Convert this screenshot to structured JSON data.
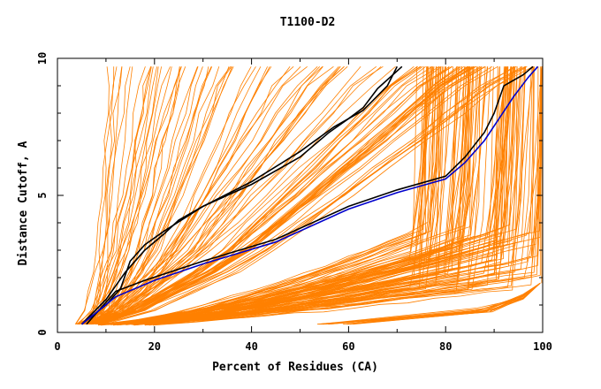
{
  "chart_data": {
    "type": "line",
    "title": "T1100-D2",
    "xlabel": "Percent of Residues (CA)",
    "ylabel": "Distance Cutoff, A",
    "xlim": [
      0,
      100
    ],
    "ylim": [
      0,
      10
    ],
    "x_ticks": [
      0,
      20,
      40,
      60,
      80,
      100
    ],
    "y_ticks": [
      0,
      5,
      10
    ],
    "grid": false,
    "legend": "none",
    "colors": {
      "bundle": "#ff8000",
      "highlight_black": "#000000",
      "highlight_blue": "#0000cc"
    },
    "series": [
      {
        "color": "#000000",
        "x": [
          5,
          10,
          13,
          15,
          18,
          22,
          30,
          40,
          50,
          57,
          60,
          63,
          66,
          71
        ],
        "y": [
          0.3,
          1.0,
          1.6,
          2.6,
          3.2,
          3.7,
          4.6,
          5.5,
          6.6,
          7.5,
          7.8,
          8.2,
          8.9,
          9.7
        ]
      },
      {
        "color": "#000000",
        "x": [
          5,
          10,
          14,
          18,
          22,
          25,
          30,
          40,
          50,
          56,
          60,
          63,
          68,
          70
        ],
        "y": [
          0.3,
          1.2,
          2.2,
          3.0,
          3.6,
          4.1,
          4.6,
          5.4,
          6.4,
          7.3,
          7.8,
          8.1,
          9.0,
          9.7
        ]
      },
      {
        "color": "#000000",
        "x": [
          6,
          12,
          18,
          30,
          45,
          60,
          70,
          80,
          84,
          88,
          90,
          92,
          96,
          98
        ],
        "y": [
          0.3,
          1.5,
          1.9,
          2.6,
          3.4,
          4.6,
          5.2,
          5.7,
          6.4,
          7.3,
          8.0,
          9.0,
          9.4,
          9.7
        ]
      },
      {
        "color": "#0000cc",
        "x": [
          5,
          12,
          20,
          30,
          45,
          60,
          70,
          80,
          84,
          88,
          91,
          94,
          97,
          99
        ],
        "y": [
          0.3,
          1.3,
          1.9,
          2.5,
          3.3,
          4.5,
          5.1,
          5.6,
          6.2,
          7.0,
          7.8,
          8.6,
          9.3,
          9.7
        ]
      }
    ]
  }
}
